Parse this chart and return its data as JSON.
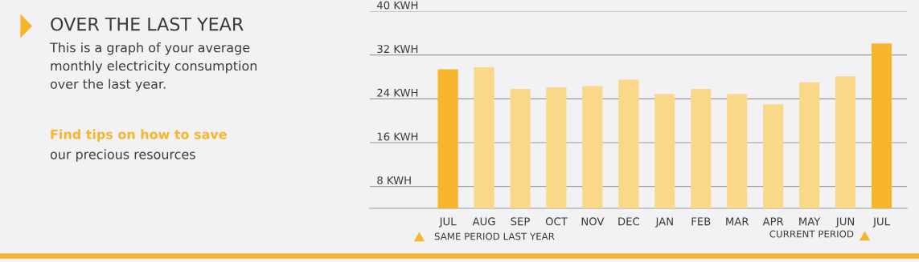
{
  "chart_data": {
    "type": "bar",
    "title": "OVER THE LAST YEAR",
    "subtitle": "This is a graph of your average\nmonthly electricity consumption\nover the last year.",
    "categories": [
      "JUL",
      "AUG",
      "SEP",
      "OCT",
      "NOV",
      "DEC",
      "JAN",
      "FEB",
      "MAR",
      "APR",
      "MAY",
      "JUN",
      "JUL"
    ],
    "values": [
      29.4,
      29.8,
      25.8,
      26.1,
      26.3,
      27.5,
      24.9,
      25.8,
      24.9,
      23.0,
      27.0,
      28.1,
      34.1
    ],
    "colors": [
      "#f7b52b",
      "#fad88a",
      "#fad88a",
      "#fad88a",
      "#fad88a",
      "#fad88a",
      "#fad88a",
      "#fad88a",
      "#fad88a",
      "#fad88a",
      "#fad88a",
      "#fad88a",
      "#f7b52b"
    ],
    "ylim": [
      4,
      40
    ],
    "yticks": [
      {
        "value": 8,
        "label": "8 KWH"
      },
      {
        "value": 16,
        "label": "16 KWH"
      },
      {
        "value": 24,
        "label": "24 KWH"
      },
      {
        "value": 32,
        "label": "32 KWH"
      },
      {
        "value": 40,
        "label": "40 KWH"
      }
    ],
    "grid": "y",
    "annotations": [
      "Find tips on how to save",
      "our precious resources",
      "SAME PERIOD LAST YEAR",
      "CURRENT PERIOD"
    ]
  }
}
